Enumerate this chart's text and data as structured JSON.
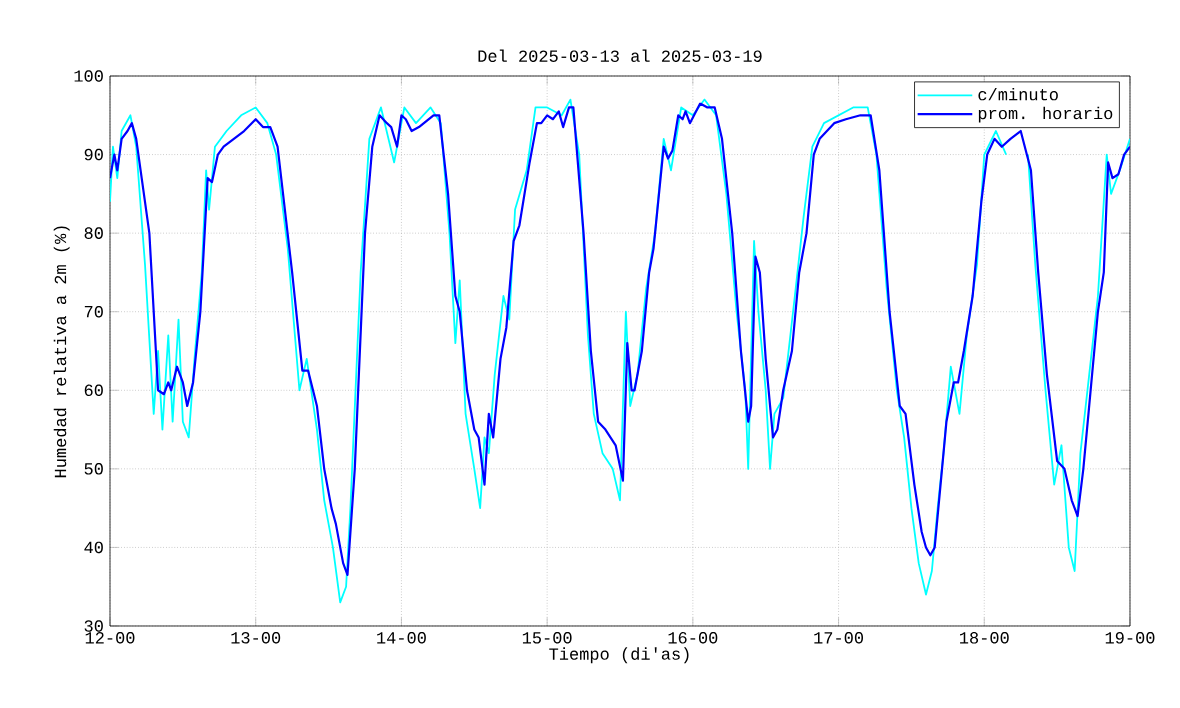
{
  "chart_data": {
    "type": "line",
    "title": "Del 2025-03-13 al 2025-03-19",
    "xlabel": "Tiempo (di'as)",
    "ylabel": "Humedad relativa a 2m (%)",
    "xlim": [
      "2025-03-12T00:00",
      "2025-03-19T00:00"
    ],
    "xticks": [
      {
        "value": "2025-03-12T00:00",
        "label": "12-00"
      },
      {
        "value": "2025-03-13T00:00",
        "label": "13-00"
      },
      {
        "value": "2025-03-14T00:00",
        "label": "14-00"
      },
      {
        "value": "2025-03-15T00:00",
        "label": "15-00"
      },
      {
        "value": "2025-03-16T00:00",
        "label": "16-00"
      },
      {
        "value": "2025-03-17T00:00",
        "label": "17-00"
      },
      {
        "value": "2025-03-18T00:00",
        "label": "18-00"
      },
      {
        "value": "2025-03-19T00:00",
        "label": "19-00"
      }
    ],
    "ylim": [
      30,
      100
    ],
    "yticks": [
      30,
      40,
      50,
      60,
      70,
      80,
      90,
      100
    ],
    "grid": true,
    "legend": "top right",
    "line_style": "solid",
    "marker": "none",
    "series": [
      {
        "name": "c/minuto",
        "color": "#00ffff",
        "x": [
          "2025-03-12T00:00",
          "2025-03-12T00:29",
          "2025-03-12T01:12",
          "2025-03-12T01:55",
          "2025-03-12T03:22",
          "2025-03-12T04:19",
          "2025-03-12T05:46",
          "2025-03-12T07:12",
          "2025-03-12T07:55",
          "2025-03-12T08:38",
          "2025-03-12T09:36",
          "2025-03-12T10:19",
          "2025-03-12T11:17",
          "2025-03-12T12:00",
          "2025-03-12T12:58",
          "2025-03-12T13:55",
          "2025-03-12T15:07",
          "2025-03-12T15:50",
          "2025-03-12T16:19",
          "2025-03-12T17:17",
          "2025-03-12T19:12",
          "2025-03-12T21:36",
          "2025-03-13T00:00",
          "2025-03-13T01:55",
          "2025-03-13T03:22",
          "2025-03-13T05:17",
          "2025-03-13T07:12",
          "2025-03-13T08:24",
          "2025-03-13T10:05",
          "2025-03-13T11:17",
          "2025-03-13T12:43",
          "2025-03-13T13:55",
          "2025-03-13T14:53",
          "2025-03-13T15:36",
          "2025-03-13T17:17",
          "2025-03-13T18:43",
          "2025-03-13T20:38",
          "2025-03-13T22:48",
          "2025-03-14T00:29",
          "2025-03-14T02:24",
          "2025-03-14T04:48",
          "2025-03-14T06:29",
          "2025-03-14T07:55",
          "2025-03-14T08:53",
          "2025-03-14T09:36",
          "2025-03-14T10:34",
          "2025-03-14T12:00",
          "2025-03-14T12:58",
          "2025-03-14T13:41",
          "2025-03-14T14:24",
          "2025-03-14T15:22",
          "2025-03-14T16:48",
          "2025-03-14T17:46",
          "2025-03-14T18:43",
          "2025-03-14T20:38",
          "2025-03-14T22:05",
          "2025-03-15T00:00",
          "2025-03-15T02:24",
          "2025-03-15T03:50",
          "2025-03-15T05:17",
          "2025-03-15T06:43",
          "2025-03-15T07:41",
          "2025-03-15T09:07",
          "2025-03-15T10:48",
          "2025-03-15T12:00",
          "2025-03-15T12:58",
          "2025-03-15T13:41",
          "2025-03-15T14:53",
          "2025-03-15T16:19",
          "2025-03-15T17:46",
          "2025-03-15T19:12",
          "2025-03-15T20:24",
          "2025-03-15T22:05",
          "2025-03-16T00:00",
          "2025-03-16T01:55",
          "2025-03-16T03:50",
          "2025-03-16T05:31",
          "2025-03-16T07:12",
          "2025-03-16T08:38",
          "2025-03-16T09:07",
          "2025-03-16T10:05",
          "2025-03-16T10:48",
          "2025-03-16T12:00",
          "2025-03-16T12:43",
          "2025-03-16T13:26",
          "2025-03-16T14:53",
          "2025-03-16T16:48",
          "2025-03-16T18:14",
          "2025-03-16T19:41",
          "2025-03-16T21:36",
          "2025-03-17T00:00",
          "2025-03-17T02:24",
          "2025-03-17T04:48",
          "2025-03-17T06:14",
          "2025-03-17T07:55",
          "2025-03-17T09:36",
          "2025-03-17T10:48",
          "2025-03-17T12:00",
          "2025-03-17T13:12",
          "2025-03-17T14:24",
          "2025-03-17T15:22",
          "2025-03-17T16:19",
          "2025-03-17T17:17",
          "2025-03-17T18:29",
          "2025-03-17T19:55",
          "2025-03-17T21:07",
          "2025-03-17T22:48",
          "2025-03-18T00:00",
          "2025-03-18T01:55",
          "2025-03-18T03:36",
          "2025-03-18T05:17",
          "2025-03-18T07:12",
          "2025-03-18T08:24",
          "2025-03-18T10:05",
          "2025-03-18T11:31",
          "2025-03-18T12:43",
          "2025-03-18T13:55",
          "2025-03-18T14:53",
          "2025-03-18T15:50",
          "2025-03-18T17:17",
          "2025-03-18T18:43",
          "2025-03-18T20:10",
          "2025-03-18T20:53",
          "2025-03-18T22:19",
          "2025-03-19T00:00"
        ],
        "values": [
          84,
          91,
          87,
          93,
          95,
          91,
          76,
          57,
          65,
          55,
          67,
          56,
          69,
          56,
          54,
          64,
          75,
          88,
          83,
          91,
          93,
          95,
          96,
          94,
          90,
          78,
          60,
          64,
          55,
          46,
          40,
          33,
          35,
          45,
          75,
          92,
          96,
          89,
          96,
          94,
          96,
          94,
          80,
          66,
          74,
          57,
          50,
          45,
          54,
          52,
          62,
          72,
          69,
          83,
          88,
          96,
          96,
          95,
          97,
          90,
          67,
          57,
          52,
          50,
          46,
          70,
          58,
          62,
          73,
          80,
          92,
          88,
          96,
          95,
          97,
          95,
          85,
          70,
          60,
          50,
          79,
          70,
          60,
          50,
          57,
          59,
          72,
          82,
          91,
          94,
          95,
          96,
          96,
          90,
          73,
          60,
          54,
          45,
          38,
          34,
          37,
          45,
          52,
          63,
          57,
          67,
          76,
          90,
          93,
          90,
          null,
          90,
          76,
          60,
          48,
          53,
          40,
          37,
          52,
          62,
          72,
          90,
          85,
          88,
          92
        ]
      },
      {
        "name": "prom. horario",
        "color": "#0000ff",
        "x": [
          "2025-03-12T00:00",
          "2025-03-12T00:43",
          "2025-03-12T01:12",
          "2025-03-12T01:55",
          "2025-03-12T02:53",
          "2025-03-12T03:36",
          "2025-03-12T04:19",
          "2025-03-12T06:29",
          "2025-03-12T07:55",
          "2025-03-12T08:53",
          "2025-03-12T09:36",
          "2025-03-12T10:05",
          "2025-03-12T11:02",
          "2025-03-12T12:00",
          "2025-03-12T12:43",
          "2025-03-12T13:41",
          "2025-03-12T14:53",
          "2025-03-12T16:05",
          "2025-03-12T16:48",
          "2025-03-12T17:46",
          "2025-03-12T18:43",
          "2025-03-12T20:24",
          "2025-03-12T22:05",
          "2025-03-13T00:00",
          "2025-03-13T01:12",
          "2025-03-13T02:24",
          "2025-03-13T03:36",
          "2025-03-13T06:00",
          "2025-03-13T07:41",
          "2025-03-13T08:38",
          "2025-03-13T10:05",
          "2025-03-13T11:17",
          "2025-03-13T12:29",
          "2025-03-13T13:12",
          "2025-03-13T14:24",
          "2025-03-13T15:07",
          "2025-03-13T16:19",
          "2025-03-13T18:00",
          "2025-03-13T19:12",
          "2025-03-13T20:24",
          "2025-03-13T21:36",
          "2025-03-13T22:19",
          "2025-03-13T23:17",
          "2025-03-14T00:00",
          "2025-03-14T00:43",
          "2025-03-14T01:41",
          "2025-03-14T02:53",
          "2025-03-14T05:17",
          "2025-03-14T06:14",
          "2025-03-14T07:41",
          "2025-03-14T08:53",
          "2025-03-14T09:36",
          "2025-03-14T10:48",
          "2025-03-14T12:00",
          "2025-03-14T12:43",
          "2025-03-14T13:41",
          "2025-03-14T14:24",
          "2025-03-14T15:07",
          "2025-03-14T16:19",
          "2025-03-14T17:17",
          "2025-03-14T18:29",
          "2025-03-14T19:26",
          "2025-03-14T21:07",
          "2025-03-14T22:19",
          "2025-03-14T23:02",
          "2025-03-15T00:00",
          "2025-03-15T00:58",
          "2025-03-15T01:55",
          "2025-03-15T02:38",
          "2025-03-15T03:36",
          "2025-03-15T04:19",
          "2025-03-15T06:00",
          "2025-03-15T07:12",
          "2025-03-15T08:24",
          "2025-03-15T09:36",
          "2025-03-15T11:17",
          "2025-03-15T12:29",
          "2025-03-15T13:12",
          "2025-03-15T13:55",
          "2025-03-15T14:24",
          "2025-03-15T15:36",
          "2025-03-15T16:48",
          "2025-03-15T17:31",
          "2025-03-15T19:12",
          "2025-03-15T19:55",
          "2025-03-15T20:38",
          "2025-03-15T21:36",
          "2025-03-15T22:19",
          "2025-03-15T22:48",
          "2025-03-15T23:31",
          "2025-03-16T01:12",
          "2025-03-16T02:24",
          "2025-03-16T03:36",
          "2025-03-16T04:48",
          "2025-03-16T06:29",
          "2025-03-16T07:55",
          "2025-03-16T09:07",
          "2025-03-16T09:36",
          "2025-03-16T10:19",
          "2025-03-16T11:02",
          "2025-03-16T12:00",
          "2025-03-16T13:12",
          "2025-03-16T13:55",
          "2025-03-16T14:53",
          "2025-03-16T16:19",
          "2025-03-16T17:31",
          "2025-03-16T18:43",
          "2025-03-16T19:55",
          "2025-03-16T20:53",
          "2025-03-16T22:05",
          "2025-03-16T23:17",
          "2025-03-17T01:12",
          "2025-03-17T03:36",
          "2025-03-17T05:17",
          "2025-03-17T06:43",
          "2025-03-17T08:24",
          "2025-03-17T10:05",
          "2025-03-17T11:02",
          "2025-03-17T12:29",
          "2025-03-17T13:41",
          "2025-03-17T14:24",
          "2025-03-17T15:07",
          "2025-03-17T15:50",
          "2025-03-17T16:48",
          "2025-03-17T17:46",
          "2025-03-17T18:58",
          "2025-03-17T19:41",
          "2025-03-17T20:38",
          "2025-03-17T22:05",
          "2025-03-17T23:31",
          "2025-03-18T00:29",
          "2025-03-18T01:41",
          "2025-03-18T02:53",
          "2025-03-18T04:19",
          "2025-03-18T06:00",
          "2025-03-18T07:41",
          "2025-03-18T08:53",
          "2025-03-18T10:19",
          "2025-03-18T12:00",
          "2025-03-18T13:12",
          "2025-03-18T14:24",
          "2025-03-18T15:22",
          "2025-03-18T16:19",
          "2025-03-18T17:31",
          "2025-03-18T18:43",
          "2025-03-18T19:41",
          "2025-03-18T20:24",
          "2025-03-18T21:07",
          "2025-03-18T22:05",
          "2025-03-18T23:02",
          "2025-03-19T00:00"
        ],
        "values": [
          87,
          90,
          88,
          92,
          93,
          94,
          92,
          80,
          60,
          59.5,
          61,
          60,
          63,
          61,
          58,
          61,
          70,
          87,
          86.5,
          90,
          91,
          92,
          93,
          94.5,
          93.5,
          93.5,
          91,
          75,
          62.5,
          62.5,
          58,
          50,
          45,
          43,
          38,
          36.5,
          50,
          80,
          91,
          95,
          94,
          93.5,
          91,
          95,
          94.5,
          93,
          93.5,
          95,
          95,
          85,
          72,
          70,
          60,
          55,
          54,
          48,
          57,
          54,
          64,
          68,
          79,
          81,
          89,
          94,
          94,
          95,
          94.5,
          95.5,
          93.5,
          96,
          96,
          80,
          65,
          56,
          55,
          53,
          48.5,
          66,
          60,
          60,
          65,
          75,
          78,
          91,
          89.5,
          90.5,
          95,
          94.5,
          95.5,
          94,
          96.5,
          96,
          96,
          92,
          80,
          65,
          56,
          58,
          77,
          75,
          64,
          54,
          55,
          60,
          65,
          75,
          80,
          90,
          92,
          93,
          94,
          94.5,
          95,
          95,
          88,
          70,
          58,
          57,
          48,
          42,
          40,
          39,
          40,
          48,
          56,
          61,
          61,
          65,
          72,
          84,
          90,
          92,
          91,
          92,
          93,
          88,
          75,
          62,
          51,
          50,
          46,
          44,
          50,
          60,
          70,
          75,
          89,
          87,
          87.5,
          90,
          91
        ]
      }
    ]
  }
}
